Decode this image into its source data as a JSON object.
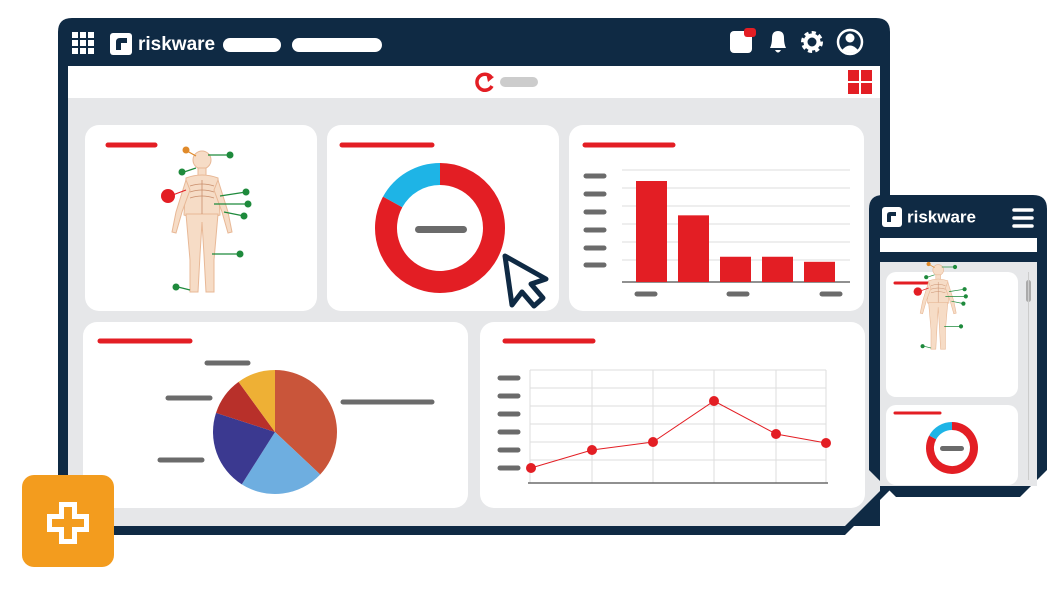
{
  "desktop": {
    "brand": "riskware"
  },
  "mobile": {
    "brand": "riskware"
  },
  "donut_chart": {
    "values": [
      83,
      17
    ],
    "colors": [
      "#e31e24",
      "#1eb4e6"
    ]
  },
  "bar_chart": {
    "values": [
      100,
      66,
      25,
      25,
      20
    ],
    "color": "#e31e24"
  },
  "pie_chart": {
    "values": [
      37,
      22,
      21,
      10,
      10
    ],
    "colors": [
      "#c9553a",
      "#6eaee0",
      "#3b3990",
      "#b8302a",
      "#eeb035"
    ]
  },
  "line_chart": {
    "values": [
      15,
      33,
      41,
      82,
      49,
      40
    ],
    "color": "#e31e24"
  }
}
